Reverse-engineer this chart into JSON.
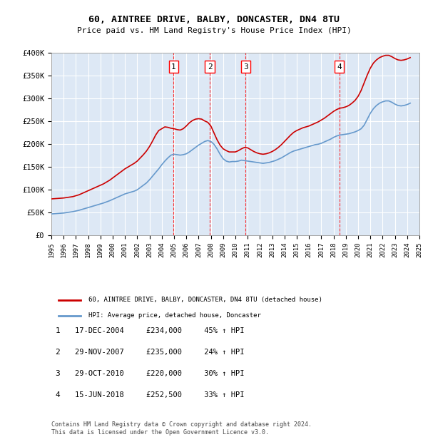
{
  "title1": "60, AINTREE DRIVE, BALBY, DONCASTER, DN4 8TU",
  "title2": "Price paid vs. HM Land Registry's House Price Index (HPI)",
  "background_color": "#dde8f5",
  "plot_bg_color": "#dde8f5",
  "legend_label_red": "60, AINTREE DRIVE, BALBY, DONCASTER, DN4 8TU (detached house)",
  "legend_label_blue": "HPI: Average price, detached house, Doncaster",
  "footer": "Contains HM Land Registry data © Crown copyright and database right 2024.\nThis data is licensed under the Open Government Licence v3.0.",
  "sale_labels": [
    {
      "num": 1,
      "date": "17-DEC-2004",
      "price": "£234,000",
      "pct": "45% ↑ HPI",
      "year": 2004.96
    },
    {
      "num": 2,
      "date": "29-NOV-2007",
      "price": "£235,000",
      "pct": "24% ↑ HPI",
      "year": 2007.91
    },
    {
      "num": 3,
      "date": "29-OCT-2010",
      "price": "£220,000",
      "pct": "30% ↑ HPI",
      "year": 2010.83
    },
    {
      "num": 4,
      "date": "15-JUN-2018",
      "price": "£252,500",
      "pct": "33% ↑ HPI",
      "year": 2018.46
    }
  ],
  "hpi_x": [
    1995,
    1995.25,
    1995.5,
    1995.75,
    1996,
    1996.25,
    1996.5,
    1996.75,
    1997,
    1997.25,
    1997.5,
    1997.75,
    1998,
    1998.25,
    1998.5,
    1998.75,
    1999,
    1999.25,
    1999.5,
    1999.75,
    2000,
    2000.25,
    2000.5,
    2000.75,
    2001,
    2001.25,
    2001.5,
    2001.75,
    2002,
    2002.25,
    2002.5,
    2002.75,
    2003,
    2003.25,
    2003.5,
    2003.75,
    2004,
    2004.25,
    2004.5,
    2004.75,
    2005,
    2005.25,
    2005.5,
    2005.75,
    2006,
    2006.25,
    2006.5,
    2006.75,
    2007,
    2007.25,
    2007.5,
    2007.75,
    2008,
    2008.25,
    2008.5,
    2008.75,
    2009,
    2009.25,
    2009.5,
    2009.75,
    2010,
    2010.25,
    2010.5,
    2010.75,
    2011,
    2011.25,
    2011.5,
    2011.75,
    2012,
    2012.25,
    2012.5,
    2012.75,
    2013,
    2013.25,
    2013.5,
    2013.75,
    2014,
    2014.25,
    2014.5,
    2014.75,
    2015,
    2015.25,
    2015.5,
    2015.75,
    2016,
    2016.25,
    2016.5,
    2016.75,
    2017,
    2017.25,
    2017.5,
    2017.75,
    2018,
    2018.25,
    2018.5,
    2018.75,
    2019,
    2019.25,
    2019.5,
    2019.75,
    2020,
    2020.25,
    2020.5,
    2020.75,
    2021,
    2021.25,
    2021.5,
    2021.75,
    2022,
    2022.25,
    2022.5,
    2022.75,
    2023,
    2023.25,
    2023.5,
    2023.75,
    2024,
    2024.25
  ],
  "hpi_y": [
    47000,
    47500,
    48000,
    48500,
    49000,
    50000,
    51000,
    52000,
    53500,
    55000,
    57000,
    59000,
    61000,
    63000,
    65000,
    67000,
    69000,
    71000,
    73500,
    76000,
    79000,
    82000,
    85000,
    88000,
    91000,
    93000,
    95000,
    97000,
    100000,
    105000,
    110000,
    115000,
    122000,
    130000,
    138000,
    146000,
    155000,
    163000,
    170000,
    176000,
    178000,
    177000,
    176000,
    177000,
    179000,
    183000,
    188000,
    193000,
    198000,
    202000,
    206000,
    208000,
    206000,
    200000,
    190000,
    178000,
    168000,
    163000,
    161000,
    162000,
    162000,
    163000,
    165000,
    164000,
    163000,
    162000,
    161000,
    160000,
    159000,
    158000,
    159000,
    160000,
    162000,
    164000,
    167000,
    170000,
    174000,
    178000,
    182000,
    185000,
    187000,
    189000,
    191000,
    193000,
    195000,
    197000,
    199000,
    200000,
    202000,
    205000,
    208000,
    211000,
    215000,
    218000,
    220000,
    221000,
    222000,
    223000,
    225000,
    227000,
    230000,
    234000,
    242000,
    255000,
    268000,
    278000,
    285000,
    290000,
    293000,
    295000,
    295000,
    292000,
    288000,
    285000,
    284000,
    285000,
    287000,
    290000
  ],
  "price_x": [
    1995,
    1995.25,
    1995.5,
    1995.75,
    1996,
    1996.25,
    1996.5,
    1996.75,
    1997,
    1997.25,
    1997.5,
    1997.75,
    1998,
    1998.25,
    1998.5,
    1998.75,
    1999,
    1999.25,
    1999.5,
    1999.75,
    2000,
    2000.25,
    2000.5,
    2000.75,
    2001,
    2001.25,
    2001.5,
    2001.75,
    2002,
    2002.25,
    2002.5,
    2002.75,
    2003,
    2003.25,
    2003.5,
    2003.75,
    2004,
    2004.25,
    2004.5,
    2004.75,
    2005,
    2005.25,
    2005.5,
    2005.75,
    2006,
    2006.25,
    2006.5,
    2006.75,
    2007,
    2007.25,
    2007.5,
    2007.75,
    2008,
    2008.25,
    2008.5,
    2008.75,
    2009,
    2009.25,
    2009.5,
    2009.75,
    2010,
    2010.25,
    2010.5,
    2010.75,
    2011,
    2011.25,
    2011.5,
    2011.75,
    2012,
    2012.25,
    2012.5,
    2012.75,
    2013,
    2013.25,
    2013.5,
    2013.75,
    2014,
    2014.25,
    2014.5,
    2014.75,
    2015,
    2015.25,
    2015.5,
    2015.75,
    2016,
    2016.25,
    2016.5,
    2016.75,
    2017,
    2017.25,
    2017.5,
    2017.75,
    2018,
    2018.25,
    2018.5,
    2018.75,
    2019,
    2019.25,
    2019.5,
    2019.75,
    2020,
    2020.25,
    2020.5,
    2020.75,
    2021,
    2021.25,
    2021.5,
    2021.75,
    2022,
    2022.25,
    2022.5,
    2022.75,
    2023,
    2023.25,
    2023.5,
    2023.75,
    2024,
    2024.25
  ],
  "price_y": [
    80000,
    80500,
    81000,
    81500,
    82000,
    83000,
    84000,
    85000,
    87000,
    89000,
    92000,
    95000,
    98000,
    101000,
    104000,
    107000,
    110000,
    113000,
    117000,
    121000,
    126000,
    131000,
    136000,
    141000,
    146000,
    150000,
    154000,
    158000,
    163000,
    170000,
    177000,
    185000,
    195000,
    207000,
    220000,
    230000,
    234000,
    238000,
    237000,
    235000,
    234000,
    232000,
    231000,
    234000,
    240000,
    247000,
    252000,
    255000,
    256000,
    255000,
    251000,
    248000,
    240000,
    225000,
    210000,
    198000,
    190000,
    186000,
    183000,
    183000,
    183000,
    186000,
    190000,
    193000,
    192000,
    188000,
    184000,
    181000,
    179000,
    178000,
    179000,
    181000,
    184000,
    188000,
    193000,
    199000,
    206000,
    213000,
    220000,
    226000,
    230000,
    233000,
    236000,
    238000,
    240000,
    243000,
    246000,
    249000,
    253000,
    257000,
    262000,
    267000,
    272000,
    276000,
    279000,
    280000,
    282000,
    285000,
    290000,
    296000,
    305000,
    318000,
    335000,
    352000,
    367000,
    378000,
    385000,
    390000,
    393000,
    395000,
    395000,
    392000,
    388000,
    385000,
    384000,
    385000,
    387000,
    390000
  ],
  "xlim": [
    1995,
    2025
  ],
  "ylim": [
    0,
    400000
  ],
  "yticks": [
    0,
    50000,
    100000,
    150000,
    200000,
    250000,
    300000,
    350000,
    400000
  ],
  "xticks": [
    1995,
    1996,
    1997,
    1998,
    1999,
    2000,
    2001,
    2002,
    2003,
    2004,
    2005,
    2006,
    2007,
    2008,
    2009,
    2010,
    2011,
    2012,
    2013,
    2014,
    2015,
    2016,
    2017,
    2018,
    2019,
    2020,
    2021,
    2022,
    2023,
    2024,
    2025
  ]
}
